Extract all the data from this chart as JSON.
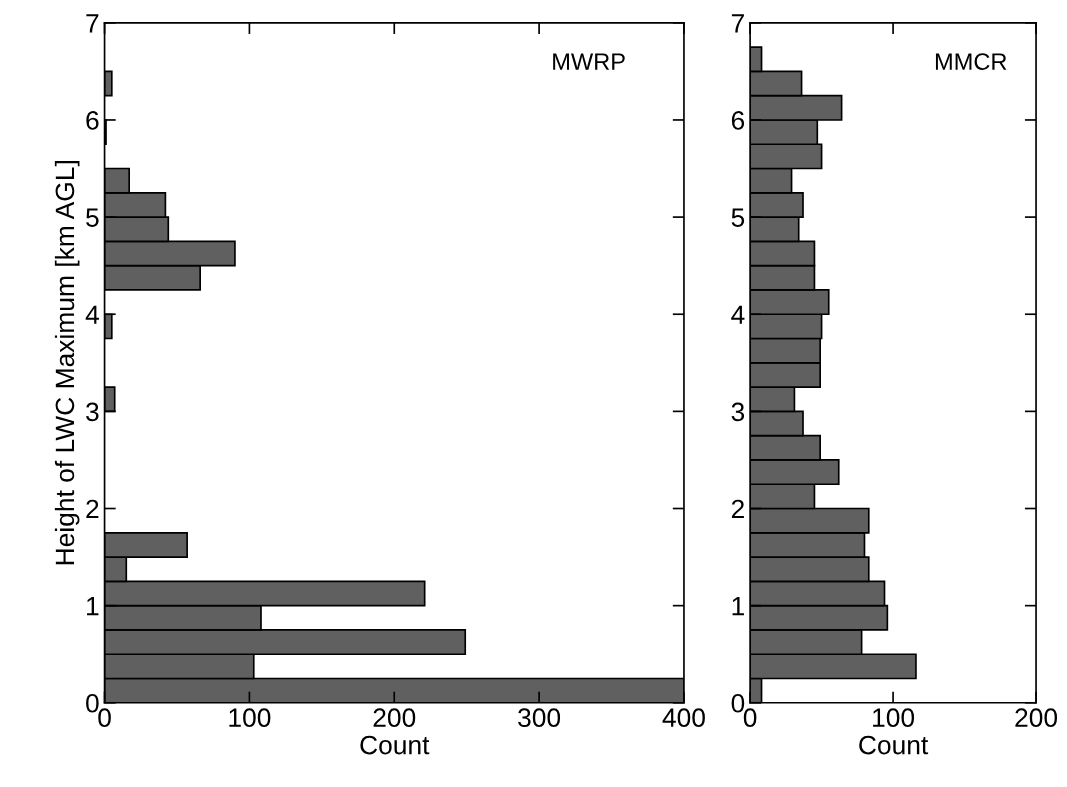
{
  "chart_data": [
    {
      "type": "histogram",
      "orientation": "horizontal",
      "ylabel": "Height of LWC Maximum [km AGL]",
      "xlabel": "Count",
      "annotations": [
        "MWRP"
      ],
      "color": "#606060",
      "bins": [
        0,
        0.25,
        0.5,
        0.75,
        1,
        1.25,
        1.5,
        1.75,
        2,
        2.25,
        2.5,
        2.75,
        3,
        3.25,
        3.5,
        3.75,
        4,
        4.25,
        4.5,
        4.75,
        5,
        5.25,
        5.5,
        5.75,
        6,
        6.25,
        6.5,
        6.75,
        7
      ],
      "values": [
        400,
        103,
        249,
        108,
        221,
        15,
        57,
        0,
        0,
        0,
        0,
        0,
        7,
        0,
        0,
        5,
        0,
        66,
        90,
        44,
        42,
        17,
        0,
        1,
        0,
        5,
        0,
        0
      ],
      "xlim": [
        0,
        400
      ],
      "xticks": [
        0,
        100,
        200,
        300,
        400
      ],
      "ylim": [
        0,
        7
      ],
      "yticks": [
        0,
        1,
        2,
        3,
        4,
        5,
        6,
        7
      ],
      "grid": false
    },
    {
      "type": "histogram",
      "orientation": "horizontal",
      "xlabel": "Count",
      "annotations": [
        "MMCR"
      ],
      "color": "#606060",
      "bins": [
        0,
        0.25,
        0.5,
        0.75,
        1,
        1.25,
        1.5,
        1.75,
        2,
        2.25,
        2.5,
        2.75,
        3,
        3.25,
        3.5,
        3.75,
        4,
        4.25,
        4.5,
        4.75,
        5,
        5.25,
        5.5,
        5.75,
        6,
        6.25,
        6.5,
        6.75,
        7
      ],
      "values": [
        8,
        116,
        78,
        96,
        94,
        83,
        80,
        83,
        45,
        62,
        49,
        37,
        31,
        49,
        49,
        50,
        55,
        45,
        45,
        34,
        37,
        29,
        50,
        47,
        64,
        36,
        8,
        0
      ],
      "xlim": [
        0,
        200
      ],
      "xticks": [
        0,
        100,
        200
      ],
      "ylim": [
        0,
        7
      ],
      "yticks": [
        0,
        1,
        2,
        3,
        4,
        5,
        6,
        7
      ],
      "grid": false
    }
  ]
}
